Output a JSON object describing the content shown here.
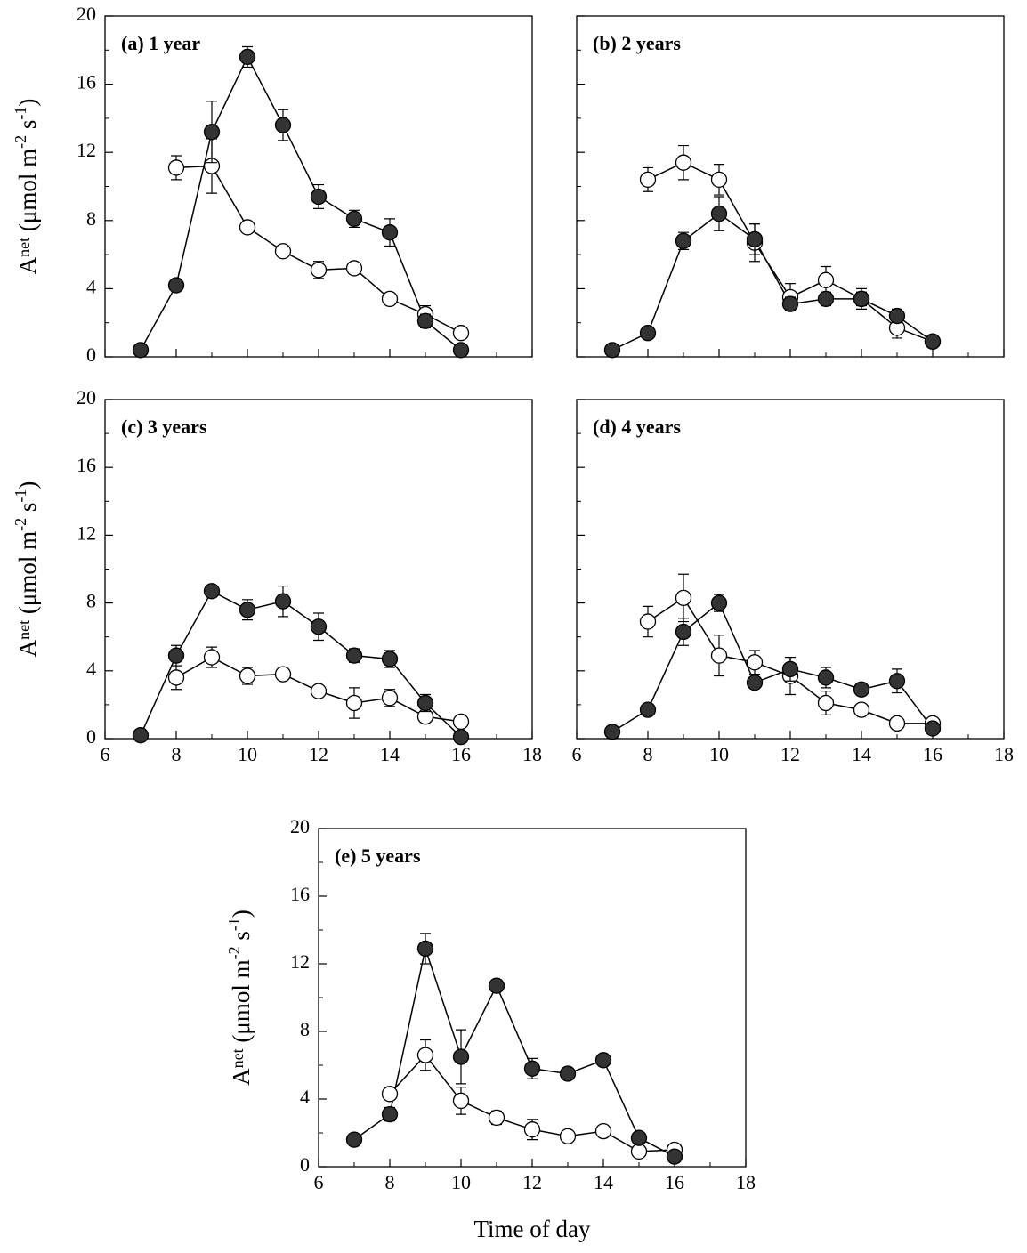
{
  "chart_data": [
    {
      "type": "line",
      "title": "(a) 1 year",
      "ylabel": [
        "A",
        "net",
        " (μmol m",
        "-2",
        " s",
        "-1",
        ")"
      ],
      "x": [
        7,
        8,
        9,
        10,
        11,
        12,
        13,
        14,
        15,
        16
      ],
      "series": [
        {
          "color": "#333333",
          "values": [
            0.4,
            4.2,
            13.2,
            17.6,
            13.6,
            9.4,
            8.1,
            7.3,
            2.1,
            0.4
          ],
          "errors": [
            null,
            null,
            1.8,
            0.6,
            0.9,
            0.7,
            0.5,
            0.8,
            0.4,
            0.2
          ]
        },
        {
          "color": "#ffffff",
          "values": [
            null,
            11.1,
            11.2,
            7.6,
            6.2,
            5.1,
            5.2,
            3.4,
            2.5,
            1.4
          ],
          "errors": [
            null,
            0.7,
            1.6,
            0.3,
            0.2,
            0.5,
            0.3,
            0.2,
            0.5,
            0.2
          ]
        }
      ],
      "xlim": [
        6,
        18
      ],
      "xticks": [
        6,
        8,
        10,
        12,
        14,
        16,
        18
      ],
      "ylim": [
        0,
        20
      ],
      "yticks": [
        0,
        4,
        8,
        12,
        16,
        20
      ],
      "xtick_labels": false,
      "ytick_labels": true
    },
    {
      "type": "line",
      "title": "(b) 2 years",
      "x": [
        7,
        8,
        9,
        10,
        11,
        12,
        13,
        14,
        15,
        16
      ],
      "series": [
        {
          "color": "#333333",
          "values": [
            0.4,
            1.4,
            6.8,
            8.4,
            6.9,
            3.1,
            3.4,
            3.4,
            2.4,
            0.9
          ],
          "errors": [
            null,
            0.3,
            0.5,
            1.0,
            0.9,
            0.4,
            0.4,
            0.4,
            0.4,
            null
          ]
        },
        {
          "color": "#ffffff",
          "values": [
            null,
            10.4,
            11.4,
            10.4,
            6.7,
            3.5,
            4.5,
            3.4,
            1.7,
            0.9
          ],
          "errors": [
            null,
            0.7,
            1.0,
            0.9,
            1.1,
            0.8,
            0.8,
            0.6,
            0.6,
            0.2
          ]
        }
      ],
      "xlim": [
        6,
        18
      ],
      "xticks": [
        6,
        8,
        10,
        12,
        14,
        16,
        18
      ],
      "ylim": [
        0,
        20
      ],
      "yticks": [
        0,
        4,
        8,
        12,
        16,
        20
      ],
      "xtick_labels": false,
      "ytick_labels": false
    },
    {
      "type": "line",
      "title": "(c) 3 years",
      "ylabel": [
        "A",
        "net",
        " (μmol m",
        "-2",
        " s",
        "-1",
        ")"
      ],
      "x": [
        7,
        8,
        9,
        10,
        11,
        12,
        13,
        14,
        15,
        16
      ],
      "series": [
        {
          "color": "#333333",
          "values": [
            0.2,
            4.9,
            8.7,
            7.6,
            8.1,
            6.6,
            4.9,
            4.7,
            2.1,
            0.1
          ],
          "errors": [
            null,
            0.6,
            0.2,
            0.6,
            0.9,
            0.8,
            0.4,
            0.5,
            0.5,
            null
          ]
        },
        {
          "color": "#ffffff",
          "values": [
            null,
            3.6,
            4.8,
            3.7,
            3.8,
            2.8,
            2.1,
            2.4,
            1.3,
            1.0
          ],
          "errors": [
            null,
            0.7,
            0.6,
            0.5,
            0.3,
            0.2,
            0.9,
            0.5,
            0.3,
            null
          ]
        }
      ],
      "xlim": [
        6,
        18
      ],
      "xticks": [
        6,
        8,
        10,
        12,
        14,
        16,
        18
      ],
      "ylim": [
        0,
        20
      ],
      "yticks": [
        0,
        4,
        8,
        12,
        16,
        20
      ],
      "xtick_labels": true,
      "ytick_labels": true
    },
    {
      "type": "line",
      "title": "(d) 4 years",
      "x": [
        7,
        8,
        9,
        10,
        11,
        12,
        13,
        14,
        15,
        16
      ],
      "series": [
        {
          "color": "#333333",
          "values": [
            0.4,
            1.7,
            6.3,
            8.0,
            3.3,
            4.1,
            3.6,
            2.9,
            3.4,
            0.6
          ],
          "errors": [
            null,
            0.3,
            0.8,
            0.5,
            0.3,
            0.7,
            0.6,
            0.3,
            0.7,
            null
          ]
        },
        {
          "color": "#ffffff",
          "values": [
            null,
            6.9,
            8.3,
            4.9,
            4.5,
            3.7,
            2.1,
            1.7,
            0.9,
            0.9
          ],
          "errors": [
            null,
            0.9,
            1.4,
            1.2,
            0.7,
            1.1,
            0.7,
            0.2,
            0.1,
            0.1
          ]
        }
      ],
      "xlim": [
        6,
        18
      ],
      "xticks": [
        6,
        8,
        10,
        12,
        14,
        16,
        18
      ],
      "ylim": [
        0,
        20
      ],
      "yticks": [
        0,
        4,
        8,
        12,
        16,
        20
      ],
      "xtick_labels": true,
      "ytick_labels": false
    },
    {
      "type": "line",
      "title": "(e) 5 years",
      "ylabel": [
        "A",
        "net",
        " (μmol m",
        "-2",
        " s",
        "-1",
        ")"
      ],
      "xlabel": "Time of day",
      "x": [
        7,
        8,
        9,
        10,
        11,
        12,
        13,
        14,
        15,
        16
      ],
      "series": [
        {
          "color": "#333333",
          "values": [
            1.6,
            3.1,
            12.9,
            6.5,
            10.7,
            5.8,
            5.5,
            6.3,
            1.7,
            0.6
          ],
          "errors": [
            null,
            0.4,
            0.9,
            1.6,
            0.3,
            0.6,
            0.2,
            0.3,
            0.3,
            null
          ]
        },
        {
          "color": "#ffffff",
          "values": [
            null,
            4.3,
            6.6,
            3.9,
            2.9,
            2.2,
            1.8,
            2.1,
            0.9,
            1.0
          ],
          "errors": [
            null,
            0.2,
            0.9,
            0.8,
            0.4,
            0.6,
            null,
            null,
            null,
            null
          ]
        }
      ],
      "xlim": [
        6,
        18
      ],
      "xticks": [
        6,
        8,
        10,
        12,
        14,
        16,
        18
      ],
      "ylim": [
        0,
        20
      ],
      "yticks": [
        0,
        4,
        8,
        12,
        16,
        20
      ],
      "xtick_labels": true,
      "ytick_labels": true
    }
  ]
}
